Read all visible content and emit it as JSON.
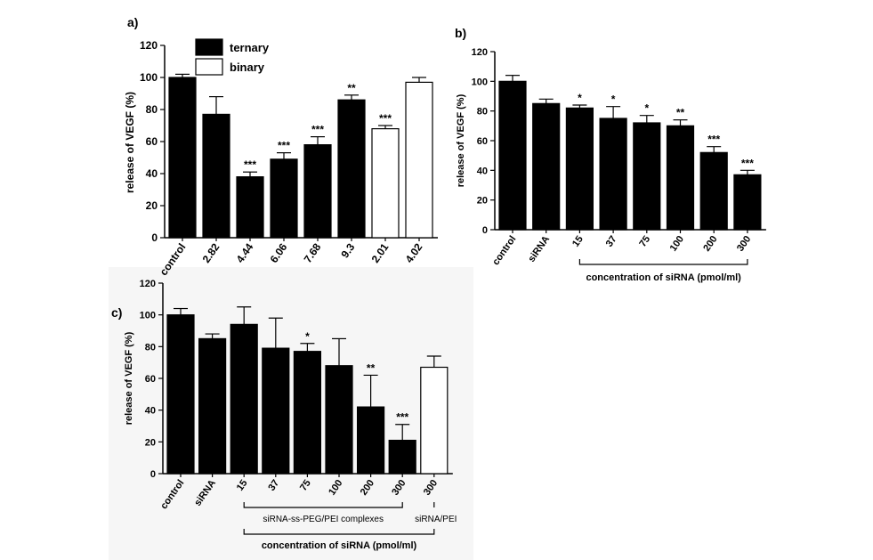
{
  "chart_data": [
    {
      "panel_label": "a)",
      "type": "bar",
      "ylabel": "release of VEGF (%)",
      "ylim": [
        0,
        120
      ],
      "yticks": [
        0,
        20,
        40,
        60,
        80,
        100,
        120
      ],
      "legend": {
        "placement": "top-left",
        "entries": [
          {
            "label": "ternary",
            "fill": "#000000"
          },
          {
            "label": "binary",
            "fill": "#ffffff"
          }
        ]
      },
      "categories": [
        "control",
        "2.82",
        "4.44",
        "6.06",
        "7.68",
        "9.3",
        "2.01",
        "4.02"
      ],
      "values": [
        100,
        77,
        38,
        49,
        58,
        86,
        68,
        97
      ],
      "errors": [
        2,
        11,
        3,
        4,
        5,
        3,
        2,
        3
      ],
      "significance": [
        "",
        "",
        "***",
        "***",
        "***",
        "**",
        "***",
        ""
      ],
      "series_membership": [
        "ternary",
        "ternary",
        "ternary",
        "ternary",
        "ternary",
        "ternary",
        "binary",
        "binary"
      ],
      "grid": false
    },
    {
      "panel_label": "b)",
      "type": "bar",
      "ylabel": "release of VEGF (%)",
      "ylim": [
        0,
        120
      ],
      "yticks": [
        0,
        20,
        40,
        60,
        80,
        100,
        120
      ],
      "categories": [
        "control",
        "siRNA",
        "15",
        "37",
        "75",
        "100",
        "200",
        "300"
      ],
      "values": [
        100,
        85,
        82,
        75,
        72,
        70,
        52,
        37
      ],
      "errors": [
        4,
        3,
        2,
        8,
        5,
        4,
        4,
        3
      ],
      "significance": [
        "",
        "",
        "*",
        "*",
        "*",
        "**",
        "***",
        "***"
      ],
      "bracket_label": "concentration of siRNA (pmol/ml)",
      "grid": false
    },
    {
      "panel_label": "c)",
      "type": "bar",
      "ylabel": "release of VEGF (%)",
      "ylim": [
        0,
        120
      ],
      "yticks": [
        0,
        20,
        40,
        60,
        80,
        100,
        120
      ],
      "categories": [
        "control",
        "siRNA",
        "15",
        "37",
        "75",
        "100",
        "200",
        "300",
        "300"
      ],
      "values": [
        100,
        85,
        94,
        79,
        77,
        68,
        42,
        21,
        67
      ],
      "errors": [
        4,
        3,
        11,
        19,
        5,
        17,
        20,
        10,
        7
      ],
      "significance": [
        "",
        "",
        "",
        "",
        "*",
        "",
        "**",
        "***",
        ""
      ],
      "bar_fill": [
        "black",
        "black",
        "black",
        "black",
        "black",
        "black",
        "black",
        "black",
        "white"
      ],
      "group_labels": [
        "siRNA-ss-PEG/PEI complexes",
        "siRNA/PEI"
      ],
      "bracket_label": "concentration of siRNA (pmol/ml)",
      "grid": false
    }
  ]
}
